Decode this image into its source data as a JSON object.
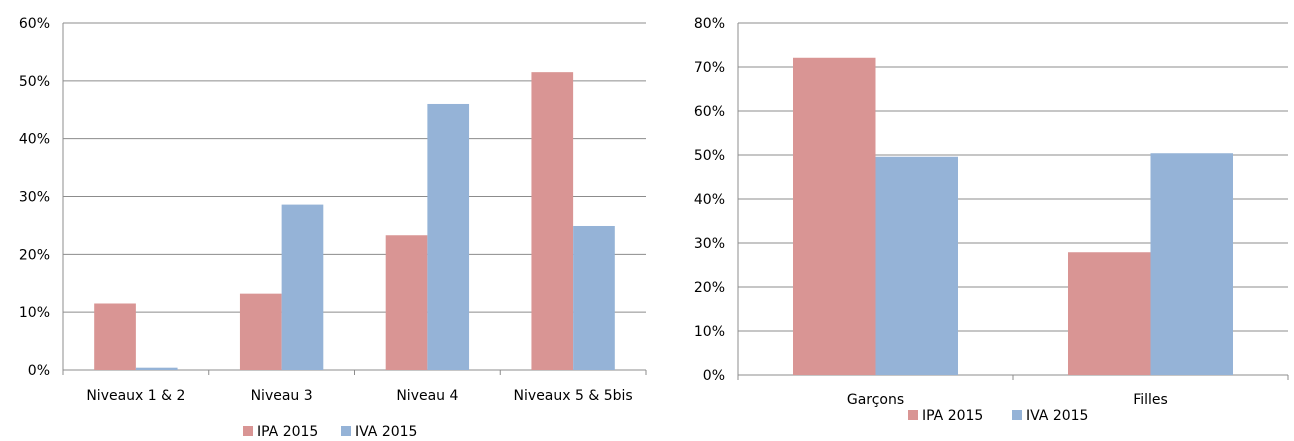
{
  "chart_data": [
    {
      "type": "bar",
      "title": "",
      "xlabel": "",
      "ylabel": "",
      "categories": [
        "Niveaux 1 & 2",
        "Niveau 3",
        "Niveau 4",
        "Niveaux 5 & 5bis"
      ],
      "series": [
        {
          "name": "IPA 2015",
          "color": "#D99594",
          "values": [
            11.5,
            13.2,
            23.3,
            51.5
          ]
        },
        {
          "name": "IVA 2015",
          "color": "#95B3D7",
          "values": [
            0.4,
            28.6,
            46.0,
            24.9
          ]
        }
      ],
      "ylim": [
        0,
        60
      ],
      "yticks": [
        0,
        10,
        20,
        30,
        40,
        50,
        60
      ],
      "ytick_labels": [
        "0%",
        "10%",
        "20%",
        "30%",
        "40%",
        "50%",
        "60%"
      ],
      "grid": true,
      "legend_position": "bottom"
    },
    {
      "type": "bar",
      "title": "",
      "xlabel": "",
      "ylabel": "",
      "categories": [
        "Garçons",
        "Filles"
      ],
      "series": [
        {
          "name": "IPA 2015",
          "color": "#D99594",
          "values": [
            72.1,
            27.9
          ]
        },
        {
          "name": "IVA 2015",
          "color": "#95B3D7",
          "values": [
            49.6,
            50.4
          ]
        }
      ],
      "ylim": [
        0,
        80
      ],
      "yticks": [
        0,
        10,
        20,
        30,
        40,
        50,
        60,
        70,
        80
      ],
      "ytick_labels": [
        "0%",
        "10%",
        "20%",
        "30%",
        "40%",
        "50%",
        "60%",
        "70%",
        "80%"
      ],
      "grid": true,
      "legend_position": "bottom"
    }
  ]
}
